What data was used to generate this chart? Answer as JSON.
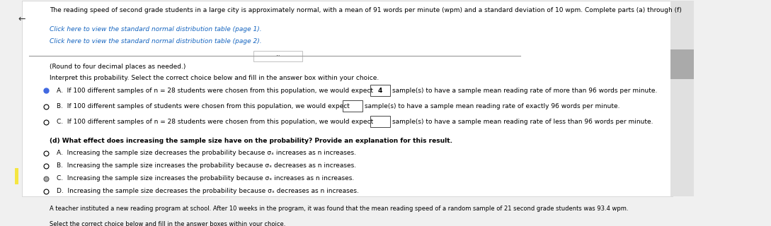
{
  "bg_color": "#f0f0f0",
  "panel_bg": "#ffffff",
  "header_text": "The reading speed of second grade students in a large city is approximately normal, with a mean of 91 words per minute (wpm) and a standard deviation of 10 wpm. Complete parts (a) through (f)",
  "link1": "Click here to view the standard normal distribution table (page 1).",
  "link2": "Click here to view the standard normal distribution table (page 2).",
  "round_note": "(Round to four decimal places as needed.)",
  "interpret_text": "Interpret this probability. Select the correct choice below and fill in the answer box within your choice.",
  "option_A": "A.  If 100 different samples of n = 28 students were chosen from this population, we would expect",
  "option_A_box": "4",
  "option_A_end": "sample(s) to have a sample mean reading rate of more than 96 words per minute.",
  "option_B": "B.  If 100 different samples of students were chosen from this population, we would expect",
  "option_B_box": "",
  "option_B_end": "sample(s) to have a sample mean reading rate of exactly 96 words per minute.",
  "option_C": "C.  If 100 different samples of n = 28 students were chosen from this population, we would expect",
  "option_C_box": "",
  "option_C_end": "sample(s) to have a sample mean reading rate of less than 96 words per minute.",
  "part_d_title": "(d) What effect does increasing the sample size have on the probability? Provide an explanation for this result.",
  "d_optA": "A.  Increasing the sample size decreases the probability because σₓ increases as n increases.",
  "d_optB": "B.  Increasing the sample size increases the probability because σₓ decreases as n increases.",
  "d_optC": "C.  Increasing the sample size increases the probability because σₓ increases as n increases.",
  "d_optD": "D.  Increasing the sample size decreases the probability because σₓ decreases as n increases.",
  "footer_text": "A teacher instituted a new reading program at school. After 10 weeks in the program, it was found that the mean reading speed of a random sample of 21 second grade students was 93.4 wpm.",
  "footer_text2": "Select the correct choice below and fill in the answer boxes within your choice.",
  "selected_A_color": "#4169e1",
  "unselected_color": "#000000",
  "link_color": "#1565C0",
  "arrow_color": "#555555"
}
